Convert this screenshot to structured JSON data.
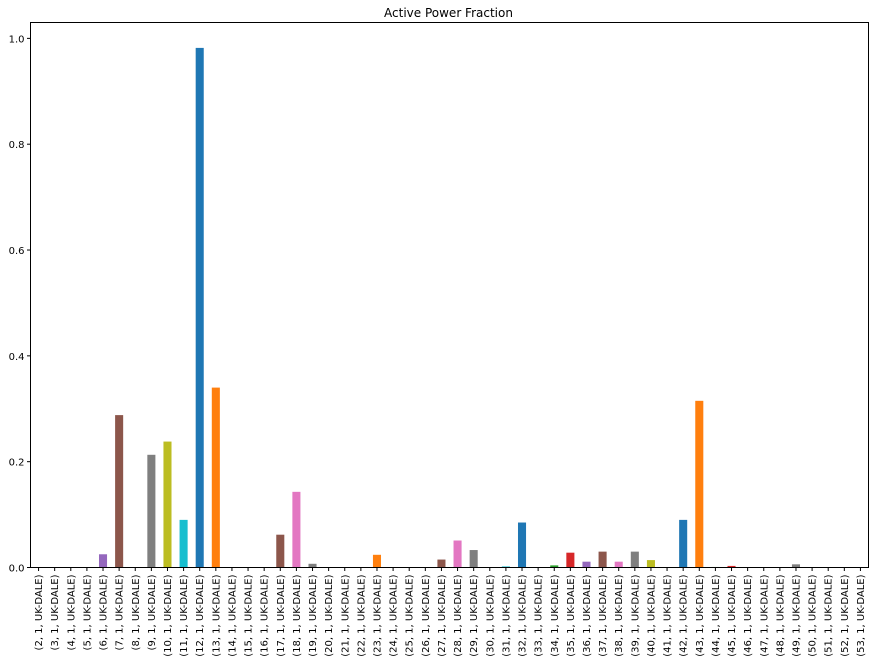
{
  "chart_data": {
    "type": "bar",
    "title": "Active Power Fraction",
    "xlabel": "",
    "ylabel": "",
    "ylim": [
      0,
      1.03
    ],
    "yticks": [
      0.0,
      0.2,
      0.4,
      0.6,
      0.8,
      1.0
    ],
    "ytick_labels": [
      "0.0",
      "0.2",
      "0.4",
      "0.6",
      "0.8",
      "1.0"
    ],
    "grid": false,
    "legend": "none",
    "categories": [
      "(2, 1, UK-DALE)",
      "(3, 1, UK-DALE)",
      "(4, 1, UK-DALE)",
      "(5, 1, UK-DALE)",
      "(6, 1, UK-DALE)",
      "(7, 1, UK-DALE)",
      "(8, 1, UK-DALE)",
      "(9, 1, UK-DALE)",
      "(10, 1, UK-DALE)",
      "(11, 1, UK-DALE)",
      "(12, 1, UK-DALE)",
      "(13, 1, UK-DALE)",
      "(14, 1, UK-DALE)",
      "(15, 1, UK-DALE)",
      "(16, 1, UK-DALE)",
      "(17, 1, UK-DALE)",
      "(18, 1, UK-DALE)",
      "(19, 1, UK-DALE)",
      "(20, 1, UK-DALE)",
      "(21, 1, UK-DALE)",
      "(22, 1, UK-DALE)",
      "(23, 1, UK-DALE)",
      "(24, 1, UK-DALE)",
      "(25, 1, UK-DALE)",
      "(26, 1, UK-DALE)",
      "(27, 1, UK-DALE)",
      "(28, 1, UK-DALE)",
      "(29, 1, UK-DALE)",
      "(30, 1, UK-DALE)",
      "(31, 1, UK-DALE)",
      "(32, 1, UK-DALE)",
      "(33, 1, UK-DALE)",
      "(34, 1, UK-DALE)",
      "(35, 1, UK-DALE)",
      "(36, 1, UK-DALE)",
      "(37, 1, UK-DALE)",
      "(38, 1, UK-DALE)",
      "(39, 1, UK-DALE)",
      "(40, 1, UK-DALE)",
      "(41, 1, UK-DALE)",
      "(42, 1, UK-DALE)",
      "(43, 1, UK-DALE)",
      "(44, 1, UK-DALE)",
      "(45, 1, UK-DALE)",
      "(46, 1, UK-DALE)",
      "(47, 1, UK-DALE)",
      "(48, 1, UK-DALE)",
      "(49, 1, UK-DALE)",
      "(50, 1, UK-DALE)",
      "(51, 1, UK-DALE)",
      "(52, 1, UK-DALE)",
      "(53, 1, UK-DALE)"
    ],
    "values": [
      0.0,
      0.0,
      0.0,
      0.0,
      0.025,
      0.288,
      0.0,
      0.213,
      0.238,
      0.09,
      0.982,
      0.34,
      0.0,
      0.0,
      0.0,
      0.062,
      0.143,
      0.007,
      0.0,
      0.0,
      0.0,
      0.024,
      0.0,
      0.0,
      0.0,
      0.015,
      0.051,
      0.033,
      0.0,
      0.002,
      0.085,
      0.0,
      0.004,
      0.028,
      0.011,
      0.03,
      0.011,
      0.03,
      0.014,
      0.0,
      0.09,
      0.315,
      0.001,
      0.003,
      0.0,
      0.0,
      0.0,
      0.006,
      0.0,
      0.0,
      0.0,
      0.0
    ],
    "colors": [
      "#1f77b4",
      "#ff7f0e",
      "#2ca02c",
      "#d62728",
      "#9467bd",
      "#8c564b",
      "#e377c2",
      "#7f7f7f",
      "#bcbd22",
      "#17becf"
    ]
  }
}
